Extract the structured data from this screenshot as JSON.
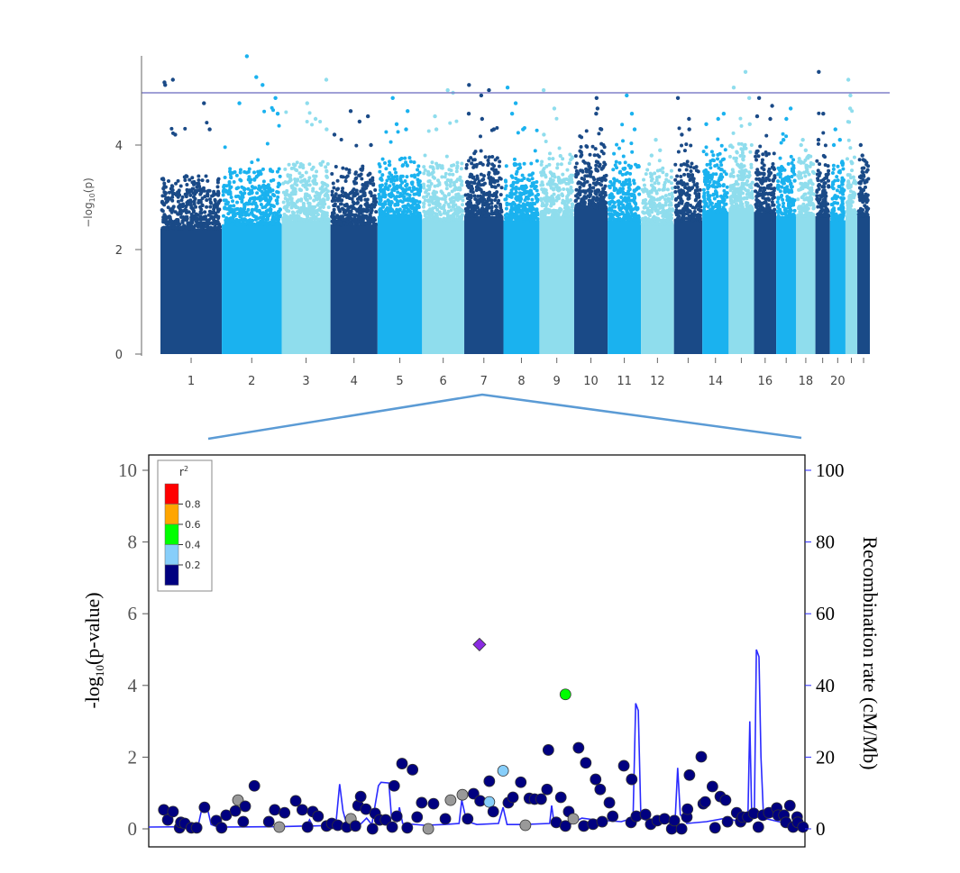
{
  "chart_data": [
    {
      "type": "scatter",
      "subtype": "manhattan",
      "ylabel_main": "−log",
      "ylabel_sub": "10",
      "ylabel_tail": "(p)",
      "ylim": [
        0,
        5.75
      ],
      "yticks": [
        0,
        2,
        4
      ],
      "threshold": 5.0,
      "threshold_color": "#8080c8",
      "colors": [
        "#1a4a87",
        "#1ab2ef",
        "#8fdded"
      ],
      "chromosomes": [
        {
          "chr": "1",
          "label": "1",
          "length_mb": 249,
          "bulk": 3.0,
          "max": 5.25,
          "tops": [
            5.25,
            5.2,
            5.15,
            4.8,
            4.3,
            4.2
          ]
        },
        {
          "chr": "2",
          "label": "2",
          "length_mb": 243,
          "bulk": 3.1,
          "max": 5.7,
          "tops": [
            5.7,
            5.3,
            5.15,
            4.9,
            4.8,
            4.6
          ]
        },
        {
          "chr": "3",
          "label": "3",
          "length_mb": 198,
          "bulk": 3.2,
          "max": 5.25,
          "tops": [
            5.25,
            4.8,
            4.5,
            4.3
          ]
        },
        {
          "chr": "4",
          "label": "4",
          "length_mb": 191,
          "bulk": 3.1,
          "max": 4.65,
          "tops": [
            4.65,
            4.55,
            4.45,
            4.2,
            4.0
          ]
        },
        {
          "chr": "5",
          "label": "5",
          "length_mb": 181,
          "bulk": 3.3,
          "max": 4.9,
          "tops": [
            4.9,
            4.65,
            4.4,
            4.3
          ]
        },
        {
          "chr": "6",
          "label": "6",
          "length_mb": 171,
          "bulk": 3.2,
          "max": 5.05,
          "tops": [
            5.05,
            5.0,
            4.55,
            4.3
          ]
        },
        {
          "chr": "7",
          "label": "7",
          "length_mb": 159,
          "bulk": 3.3,
          "max": 5.15,
          "tops": [
            5.15,
            5.05,
            4.95,
            4.6,
            4.5,
            4.3
          ]
        },
        {
          "chr": "8",
          "label": "8",
          "length_mb": 146,
          "bulk": 3.2,
          "max": 5.1,
          "tops": [
            5.1,
            4.8,
            4.6,
            4.3
          ]
        },
        {
          "chr": "9",
          "label": "9",
          "length_mb": 141,
          "bulk": 3.3,
          "max": 5.05,
          "tops": [
            5.05,
            4.7,
            4.2
          ]
        },
        {
          "chr": "10",
          "label": "10",
          "length_mb": 136,
          "bulk": 3.5,
          "max": 4.9,
          "tops": [
            4.9,
            4.7,
            4.6,
            4.3
          ]
        },
        {
          "chr": "11",
          "label": "11",
          "length_mb": 135,
          "bulk": 3.2,
          "max": 4.95,
          "tops": [
            4.95,
            4.6,
            4.3
          ]
        },
        {
          "chr": "12",
          "label": "12",
          "length_mb": 134,
          "bulk": 3.1,
          "max": 4.1,
          "tops": [
            4.1,
            3.9,
            3.8
          ]
        },
        {
          "chr": "13",
          "label": "",
          "length_mb": 115,
          "bulk": 3.2,
          "max": 4.9,
          "tops": [
            4.9,
            4.5,
            4.3,
            4.2
          ]
        },
        {
          "chr": "14",
          "label": "14",
          "length_mb": 107,
          "bulk": 3.4,
          "max": 4.6,
          "tops": [
            4.6,
            4.5,
            4.4
          ]
        },
        {
          "chr": "15",
          "label": "",
          "length_mb": 103,
          "bulk": 3.5,
          "max": 5.4,
          "tops": [
            5.4,
            5.1,
            4.9,
            4.4
          ]
        },
        {
          "chr": "16",
          "label": "16",
          "length_mb": 90,
          "bulk": 3.4,
          "max": 4.9,
          "tops": [
            4.9,
            4.75,
            4.55,
            4.5
          ]
        },
        {
          "chr": "17",
          "label": "",
          "length_mb": 81,
          "bulk": 3.3,
          "max": 4.7,
          "tops": [
            4.7,
            4.5,
            4.1
          ]
        },
        {
          "chr": "18",
          "label": "18",
          "length_mb": 78,
          "bulk": 3.3,
          "max": 4.1,
          "tops": [
            4.1,
            4.0,
            3.9
          ]
        },
        {
          "chr": "19",
          "label": "",
          "length_mb": 59,
          "bulk": 3.3,
          "max": 5.4,
          "tops": [
            5.4,
            4.6,
            4.1
          ]
        },
        {
          "chr": "20",
          "label": "20",
          "length_mb": 63,
          "bulk": 3.2,
          "max": 4.3,
          "tops": [
            4.3,
            4.1,
            4.0
          ]
        },
        {
          "chr": "21",
          "label": "",
          "length_mb": 48,
          "bulk": 3.3,
          "max": 5.25,
          "tops": [
            5.25,
            4.95,
            4.7
          ]
        },
        {
          "chr": "22",
          "label": "",
          "length_mb": 51,
          "bulk": 3.3,
          "max": 4.0,
          "tops": [
            4.0,
            3.8,
            3.7
          ]
        }
      ]
    },
    {
      "type": "scatter",
      "subtype": "regional-association",
      "ylabel_left_main": "-log",
      "ylabel_left_sub": "10",
      "ylabel_left_tail": "(p-value)",
      "ylabel_right": "Recombination rate (cM/Mb)",
      "ylim_left": [
        0,
        10
      ],
      "yticks_left": [
        0,
        2,
        4,
        6,
        8,
        10
      ],
      "ylim_right": [
        0,
        100
      ],
      "yticks_right": [
        0,
        20,
        40,
        60,
        80,
        100
      ],
      "xlim": [
        0,
        100
      ],
      "recomb_color": "#2a2aff",
      "legend": {
        "title": "r",
        "title_sup": "2",
        "placement": "top-left",
        "bins": [
          {
            "color": "#ff0000",
            "label": "0.8"
          },
          {
            "color": "#ffa500",
            "label": "0.6"
          },
          {
            "color": "#00ff00",
            "label": "0.4"
          },
          {
            "color": "#87cefa",
            "label": "0.2"
          },
          {
            "color": "#000080",
            "label": ""
          }
        ]
      },
      "class_colors": {
        "lead": "#8a2be2",
        "r2_0.4-0.6": "#00ff00",
        "r2_0.2-0.4": "#87cefa",
        "r2_0-0.2": "#000080",
        "na": "#999999"
      },
      "lead_snp": {
        "x": 50.4,
        "y": 5.14
      },
      "points": [
        [
          2.3,
          0.53,
          "r2_0-0.2"
        ],
        [
          2.9,
          0.25,
          "r2_0-0.2"
        ],
        [
          3.7,
          0.48,
          "r2_0-0.2"
        ],
        [
          4.7,
          0.03,
          "r2_0-0.2"
        ],
        [
          4.9,
          0.18,
          "r2_0-0.2"
        ],
        [
          5.5,
          0.15,
          "r2_0-0.2"
        ],
        [
          6.5,
          0.03,
          "r2_0-0.2"
        ],
        [
          7.3,
          0.03,
          "r2_0-0.2"
        ],
        [
          8.5,
          0.6,
          "r2_0-0.2"
        ],
        [
          10.3,
          0.23,
          "r2_0-0.2"
        ],
        [
          11.1,
          0.03,
          "r2_0-0.2"
        ],
        [
          11.8,
          0.38,
          "r2_0-0.2"
        ],
        [
          13.2,
          0.5,
          "r2_0-0.2"
        ],
        [
          13.6,
          0.8,
          "na"
        ],
        [
          14.7,
          0.63,
          "r2_0-0.2"
        ],
        [
          14.4,
          0.2,
          "r2_0-0.2"
        ],
        [
          16.1,
          1.2,
          "r2_0-0.2"
        ],
        [
          18.3,
          0.2,
          "r2_0-0.2"
        ],
        [
          19.2,
          0.53,
          "r2_0-0.2"
        ],
        [
          19.9,
          0.05,
          "na"
        ],
        [
          20.7,
          0.45,
          "r2_0-0.2"
        ],
        [
          22.4,
          0.78,
          "r2_0-0.2"
        ],
        [
          23.4,
          0.53,
          "r2_0-0.2"
        ],
        [
          24.2,
          0.05,
          "r2_0-0.2"
        ],
        [
          25.0,
          0.48,
          "r2_0-0.2"
        ],
        [
          25.8,
          0.35,
          "r2_0-0.2"
        ],
        [
          27.1,
          0.08,
          "r2_0-0.2"
        ],
        [
          27.9,
          0.15,
          "r2_0-0.2"
        ],
        [
          28.8,
          0.1,
          "r2_0-0.2"
        ],
        [
          30.2,
          0.05,
          "r2_0-0.2"
        ],
        [
          30.8,
          0.28,
          "na"
        ],
        [
          31.5,
          0.08,
          "r2_0-0.2"
        ],
        [
          31.9,
          0.65,
          "r2_0-0.2"
        ],
        [
          32.3,
          0.9,
          "r2_0-0.2"
        ],
        [
          33.1,
          0.55,
          "r2_0-0.2"
        ],
        [
          34.1,
          0.0,
          "r2_0-0.2"
        ],
        [
          34.5,
          0.43,
          "r2_0-0.2"
        ],
        [
          35.2,
          0.25,
          "r2_0-0.2"
        ],
        [
          36.1,
          0.25,
          "r2_0-0.2"
        ],
        [
          37.1,
          0.05,
          "r2_0-0.2"
        ],
        [
          37.8,
          0.35,
          "r2_0-0.2"
        ],
        [
          37.4,
          1.2,
          "r2_0-0.2"
        ],
        [
          38.6,
          1.82,
          "r2_0-0.2"
        ],
        [
          40.2,
          1.65,
          "r2_0-0.2"
        ],
        [
          39.4,
          0.03,
          "r2_0-0.2"
        ],
        [
          40.9,
          0.33,
          "r2_0-0.2"
        ],
        [
          41.6,
          0.73,
          "r2_0-0.2"
        ],
        [
          42.6,
          0.0,
          "na"
        ],
        [
          43.4,
          0.7,
          "r2_0-0.2"
        ],
        [
          45.2,
          0.28,
          "r2_0-0.2"
        ],
        [
          46.0,
          0.8,
          "na"
        ],
        [
          47.8,
          0.95,
          "na"
        ],
        [
          48.6,
          0.28,
          "r2_0-0.2"
        ],
        [
          49.5,
          0.98,
          "r2_0-0.2"
        ],
        [
          50.5,
          0.78,
          "r2_0-0.2"
        ],
        [
          51.9,
          0.75,
          "r2_0.2-0.4"
        ],
        [
          51.9,
          1.33,
          "r2_0-0.2"
        ],
        [
          52.5,
          0.48,
          "r2_0-0.2"
        ],
        [
          54.0,
          1.62,
          "r2_0.2-0.4"
        ],
        [
          54.8,
          0.73,
          "r2_0-0.2"
        ],
        [
          55.5,
          0.88,
          "r2_0-0.2"
        ],
        [
          56.7,
          1.3,
          "r2_0-0.2"
        ],
        [
          57.4,
          0.1,
          "na"
        ],
        [
          58.0,
          0.85,
          "r2_0-0.2"
        ],
        [
          58.8,
          0.83,
          "r2_0-0.2"
        ],
        [
          59.8,
          0.83,
          "r2_0-0.2"
        ],
        [
          60.7,
          1.1,
          "r2_0-0.2"
        ],
        [
          60.9,
          2.2,
          "r2_0-0.2"
        ],
        [
          62.1,
          0.18,
          "r2_0-0.2"
        ],
        [
          62.8,
          0.88,
          "r2_0-0.2"
        ],
        [
          63.5,
          0.08,
          "r2_0-0.2"
        ],
        [
          64.0,
          0.48,
          "r2_0-0.2"
        ],
        [
          64.7,
          0.28,
          "na"
        ],
        [
          65.5,
          2.26,
          "r2_0-0.2"
        ],
        [
          66.3,
          0.08,
          "r2_0-0.2"
        ],
        [
          66.6,
          1.84,
          "r2_0-0.2"
        ],
        [
          67.7,
          0.13,
          "r2_0-0.2"
        ],
        [
          68.1,
          1.38,
          "r2_0-0.2"
        ],
        [
          68.8,
          1.1,
          "r2_0-0.2"
        ],
        [
          69.1,
          0.2,
          "r2_0-0.2"
        ],
        [
          70.2,
          0.73,
          "r2_0-0.2"
        ],
        [
          70.7,
          0.35,
          "r2_0-0.2"
        ],
        [
          72.4,
          1.76,
          "r2_0-0.2"
        ],
        [
          73.5,
          0.18,
          "r2_0-0.2"
        ],
        [
          73.6,
          1.38,
          "r2_0-0.2"
        ],
        [
          74.3,
          0.35,
          "r2_0-0.2"
        ],
        [
          75.7,
          0.4,
          "r2_0-0.2"
        ],
        [
          76.5,
          0.13,
          "r2_0-0.2"
        ],
        [
          77.5,
          0.23,
          "r2_0-0.2"
        ],
        [
          78.6,
          0.28,
          "r2_0-0.2"
        ],
        [
          79.7,
          0.0,
          "r2_0-0.2"
        ],
        [
          80.1,
          0.23,
          "r2_0-0.2"
        ],
        [
          81.2,
          0.0,
          "r2_0-0.2"
        ],
        [
          82.0,
          0.33,
          "r2_0-0.2"
        ],
        [
          82.1,
          0.55,
          "r2_0-0.2"
        ],
        [
          82.4,
          1.5,
          "r2_0-0.2"
        ],
        [
          84.2,
          2.01,
          "r2_0-0.2"
        ],
        [
          84.5,
          0.7,
          "r2_0-0.2"
        ],
        [
          84.8,
          0.75,
          "r2_0-0.2"
        ],
        [
          85.9,
          1.18,
          "r2_0-0.2"
        ],
        [
          86.3,
          0.03,
          "r2_0-0.2"
        ],
        [
          87.1,
          0.9,
          "r2_0-0.2"
        ],
        [
          87.9,
          0.8,
          "r2_0-0.2"
        ],
        [
          88.2,
          0.2,
          "r2_0-0.2"
        ],
        [
          89.6,
          0.45,
          "r2_0-0.2"
        ],
        [
          90.2,
          0.2,
          "r2_0-0.2"
        ],
        [
          90.5,
          0.33,
          "r2_0-0.2"
        ],
        [
          91.3,
          0.33,
          "r2_0-0.2"
        ],
        [
          92.2,
          0.43,
          "r2_0-0.2"
        ],
        [
          92.9,
          0.05,
          "r2_0-0.2"
        ],
        [
          93.6,
          0.38,
          "r2_0-0.2"
        ],
        [
          94.5,
          0.45,
          "r2_0-0.2"
        ],
        [
          95.7,
          0.58,
          "r2_0-0.2"
        ],
        [
          95.9,
          0.38,
          "r2_0-0.2"
        ],
        [
          96.8,
          0.38,
          "r2_0-0.2"
        ],
        [
          97.1,
          0.18,
          "r2_0-0.2"
        ],
        [
          97.7,
          0.65,
          "r2_0-0.2"
        ],
        [
          98.2,
          0.05,
          "r2_0-0.2"
        ],
        [
          98.8,
          0.33,
          "r2_0-0.2"
        ],
        [
          98.9,
          0.18,
          "r2_0-0.2"
        ],
        [
          99.7,
          0.05,
          "r2_0-0.2"
        ],
        [
          63.5,
          3.75,
          "r2_0.4-0.6"
        ]
      ],
      "recombination": [
        [
          0,
          0.5
        ],
        [
          7.5,
          0.6
        ],
        [
          8.2,
          6.5
        ],
        [
          8.8,
          6.8
        ],
        [
          9.5,
          1.2
        ],
        [
          10.5,
          0.5
        ],
        [
          20,
          0.6
        ],
        [
          24,
          0.8
        ],
        [
          24.5,
          2.5
        ],
        [
          25,
          0.8
        ],
        [
          28.5,
          1.0
        ],
        [
          29.1,
          12.5
        ],
        [
          29.6,
          5
        ],
        [
          30.2,
          1.0
        ],
        [
          32,
          0.8
        ],
        [
          33.2,
          3
        ],
        [
          34,
          1.2
        ],
        [
          35.0,
          12
        ],
        [
          35.4,
          13
        ],
        [
          36.6,
          12.8
        ],
        [
          37.0,
          3
        ],
        [
          37.8,
          2
        ],
        [
          38.2,
          6
        ],
        [
          38.7,
          1.5
        ],
        [
          42,
          1.0
        ],
        [
          45,
          1.2
        ],
        [
          47.3,
          1.5
        ],
        [
          47.7,
          8
        ],
        [
          48.2,
          4
        ],
        [
          48.6,
          2
        ],
        [
          50,
          1.2
        ],
        [
          53.3,
          1.5
        ],
        [
          54.0,
          6
        ],
        [
          54.6,
          1.2
        ],
        [
          57,
          1.2
        ],
        [
          61.1,
          1.5
        ],
        [
          61.4,
          6.5
        ],
        [
          61.8,
          1.2
        ],
        [
          64,
          1.0
        ],
        [
          66,
          3
        ],
        [
          68,
          2.5
        ],
        [
          72,
          2
        ],
        [
          73.8,
          3
        ],
        [
          74.2,
          35
        ],
        [
          74.6,
          33
        ],
        [
          75,
          3
        ],
        [
          77,
          1.5
        ],
        [
          80.2,
          2
        ],
        [
          80.6,
          17
        ],
        [
          81,
          4
        ],
        [
          82,
          1.5
        ],
        [
          85,
          2
        ],
        [
          88,
          3
        ],
        [
          90,
          2
        ],
        [
          91.3,
          3
        ],
        [
          91.6,
          30
        ],
        [
          91.9,
          3
        ],
        [
          92.3,
          5
        ],
        [
          92.6,
          50
        ],
        [
          93.0,
          48
        ],
        [
          93.3,
          20
        ],
        [
          93.7,
          3
        ],
        [
          96,
          2
        ],
        [
          100,
          0.5
        ]
      ]
    }
  ],
  "zoom_connector_color": "#5b9bd5"
}
